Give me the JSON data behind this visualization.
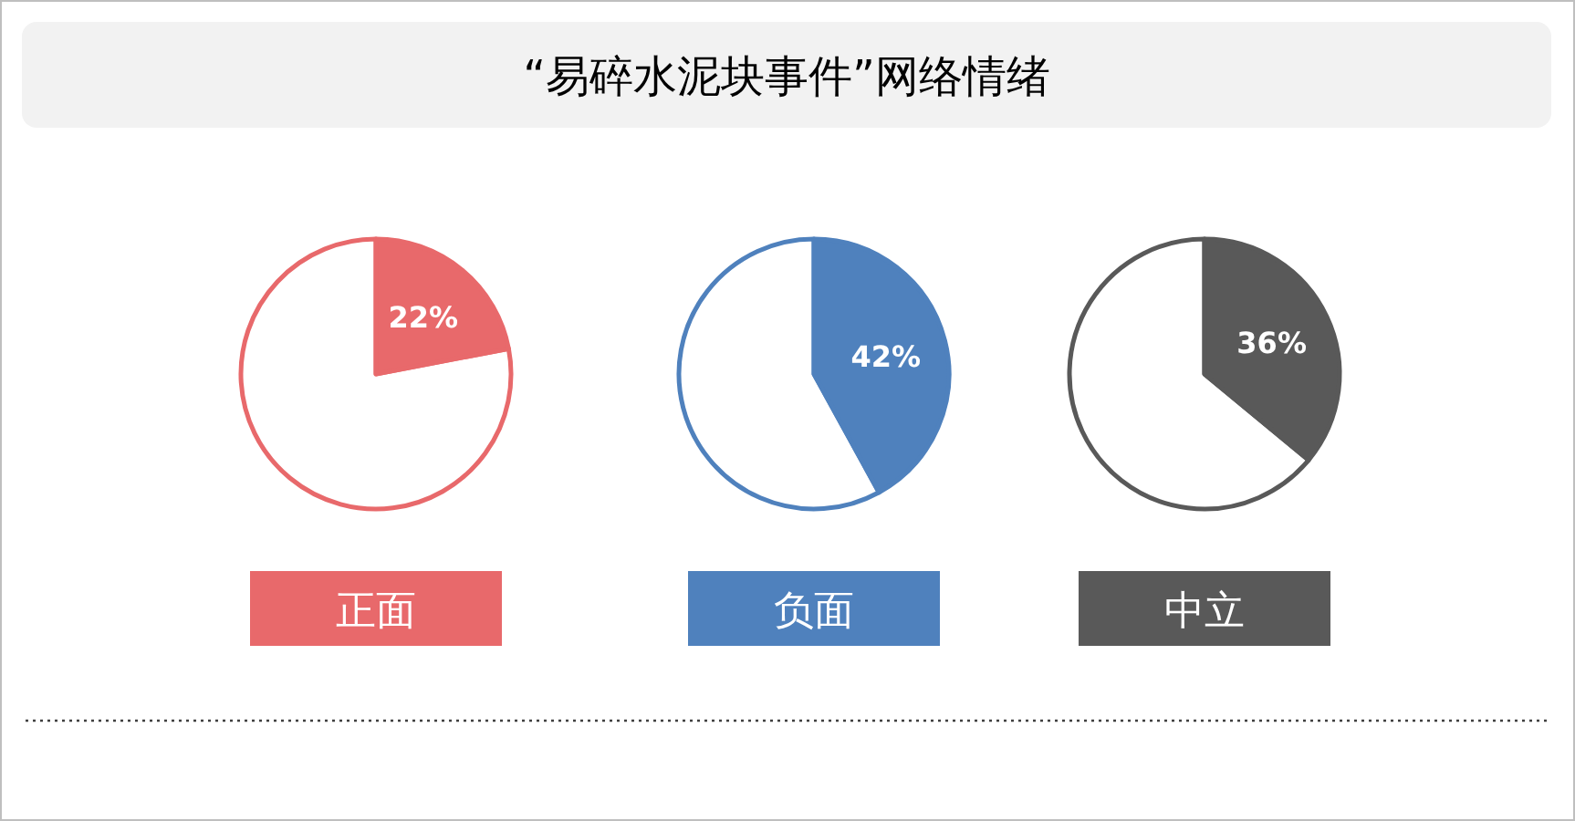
{
  "chart_data": [
    {
      "type": "other",
      "title": "“易碎水泥块事件”网络情绪"
    },
    {
      "type": "pie",
      "title": "正面",
      "categories": [
        null,
        null
      ],
      "values": [
        22,
        78
      ],
      "colors": [
        "#e8696b",
        "#ffffff"
      ],
      "value_labels": [
        "22%",
        null
      ]
    },
    {
      "type": "pie",
      "title": "负面",
      "categories": [
        null,
        null
      ],
      "values": [
        42,
        58
      ],
      "colors": [
        "#4f81bd",
        "#ffffff"
      ],
      "value_labels": [
        "42%",
        null
      ]
    },
    {
      "type": "pie",
      "title": "中立",
      "categories": [
        null,
        null
      ],
      "values": [
        36,
        64
      ],
      "colors": [
        "#595959",
        "#ffffff"
      ],
      "value_labels": [
        "36%",
        null
      ]
    }
  ]
}
